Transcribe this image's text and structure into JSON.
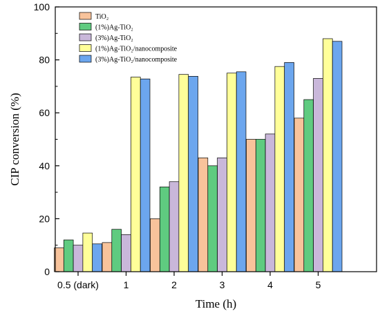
{
  "chart_data": {
    "type": "bar",
    "xlabel": "Time (h)",
    "ylabel": "CIP conversion (%)",
    "ylim": [
      0,
      100
    ],
    "yticks": [
      0,
      20,
      40,
      60,
      80,
      100
    ],
    "categories": [
      "0.5 (dark)",
      "1",
      "2",
      "3",
      "4",
      "5"
    ],
    "legend_position": "top-left",
    "grid": false,
    "series": [
      {
        "name": "TiO₂",
        "color": "#F8C39B",
        "values": [
          9,
          11,
          20,
          43,
          50,
          58
        ]
      },
      {
        "name": "(1%)Ag-TiO₂",
        "color": "#5FCB80",
        "values": [
          12,
          16,
          32,
          40,
          50,
          65
        ]
      },
      {
        "name": "(3%)Ag-TiO₂",
        "color": "#C9B7DA",
        "values": [
          10,
          14,
          34,
          43,
          52,
          73
        ]
      },
      {
        "name": "(1%)Ag-TiO₂/nanocomposite",
        "color": "#FFFF99",
        "values": [
          14.6,
          73.5,
          74.5,
          75,
          77.5,
          88
        ]
      },
      {
        "name": " (3%)Ag-TiO₂/nanocomposite",
        "color": "#6CA6EE",
        "values": [
          10.5,
          72.8,
          73.8,
          75.5,
          79,
          87
        ]
      }
    ]
  }
}
